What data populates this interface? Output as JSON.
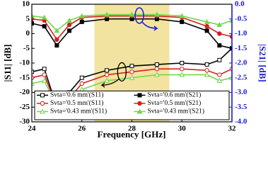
{
  "chart_data": {
    "type": "line",
    "x_label": "Frequency [GHz]",
    "y_label": "|S11| [dB]",
    "y2_label": "|S21| [dB]",
    "x": [
      24,
      24.5,
      25,
      25.5,
      26,
      27,
      28,
      29,
      30,
      31,
      31.5,
      32
    ],
    "xlim": [
      24,
      32
    ],
    "xticks": [
      24,
      26,
      28,
      30,
      32
    ],
    "ylim": [
      -30,
      10
    ],
    "yticks": [
      -30,
      -25,
      -20,
      -15,
      -10,
      -5,
      0,
      5,
      10
    ],
    "y2lim": [
      -4,
      0
    ],
    "y2ticks": [
      {
        "value": -4,
        "label": "-4.0"
      },
      -3.5,
      {
        "value": -3,
        "label": "-3.0"
      },
      -2.5,
      {
        "value": -2,
        "label": "-2.0"
      },
      -1.5,
      {
        "value": -1,
        "label": "-1.0"
      },
      -0.5,
      {
        "value": 0,
        "label": "0.0"
      }
    ],
    "y2_color": "#1a1adb",
    "shaded_range": [
      26.5,
      29.5
    ],
    "shade_color": "#f3e3a0",
    "series": [
      {
        "name": "Svta='0.6 mm'(S11)",
        "color": "#000000",
        "marker": "square",
        "filled": false,
        "values": [
          -13,
          -12,
          -25,
          -20,
          -15,
          -12.5,
          -11,
          -10.5,
          -10,
          -10.5,
          -9,
          -5
        ]
      },
      {
        "name": "Svta='0.6 mm'(S21)",
        "color": "#000000",
        "marker": "square",
        "filled": true,
        "axis": "y2",
        "values": [
          -0.65,
          -0.75,
          -1.4,
          -0.9,
          -0.6,
          -0.5,
          -0.5,
          -0.5,
          -0.6,
          -0.9,
          -1.4,
          -1.5
        ]
      },
      {
        "name": "Svta='0.5 mm'(S11)",
        "color": "#d42020",
        "marker": "circle",
        "filled": false,
        "values": [
          -15,
          -14,
          -25,
          -22,
          -17,
          -14,
          -13,
          -12,
          -12,
          -12.5,
          -14,
          -12
        ]
      },
      {
        "name": "Svta='0.5 mm'(S21)",
        "color": "#d42020",
        "marker": "circle",
        "filled": true,
        "axis": "y2",
        "values": [
          -0.5,
          -0.55,
          -1.2,
          -0.7,
          -0.45,
          -0.4,
          -0.4,
          -0.4,
          -0.45,
          -0.75,
          -1,
          -1.1
        ]
      },
      {
        "name": "Svta='0.43 mm'(S11)",
        "color": "#6fd84a",
        "marker": "triangle",
        "filled": false,
        "values": [
          -17,
          -16,
          -25,
          -23,
          -19,
          -16,
          -15,
          -14,
          -14,
          -14,
          -16,
          -15
        ]
      },
      {
        "name": "Svta='0.43 mm'(S21)",
        "color": "#6fd84a",
        "marker": "triangle",
        "filled": true,
        "axis": "y2",
        "values": [
          -0.4,
          -0.45,
          -0.9,
          -0.55,
          -0.4,
          -0.35,
          -0.35,
          -0.35,
          -0.4,
          -0.6,
          -0.7,
          -0.55
        ]
      }
    ]
  }
}
